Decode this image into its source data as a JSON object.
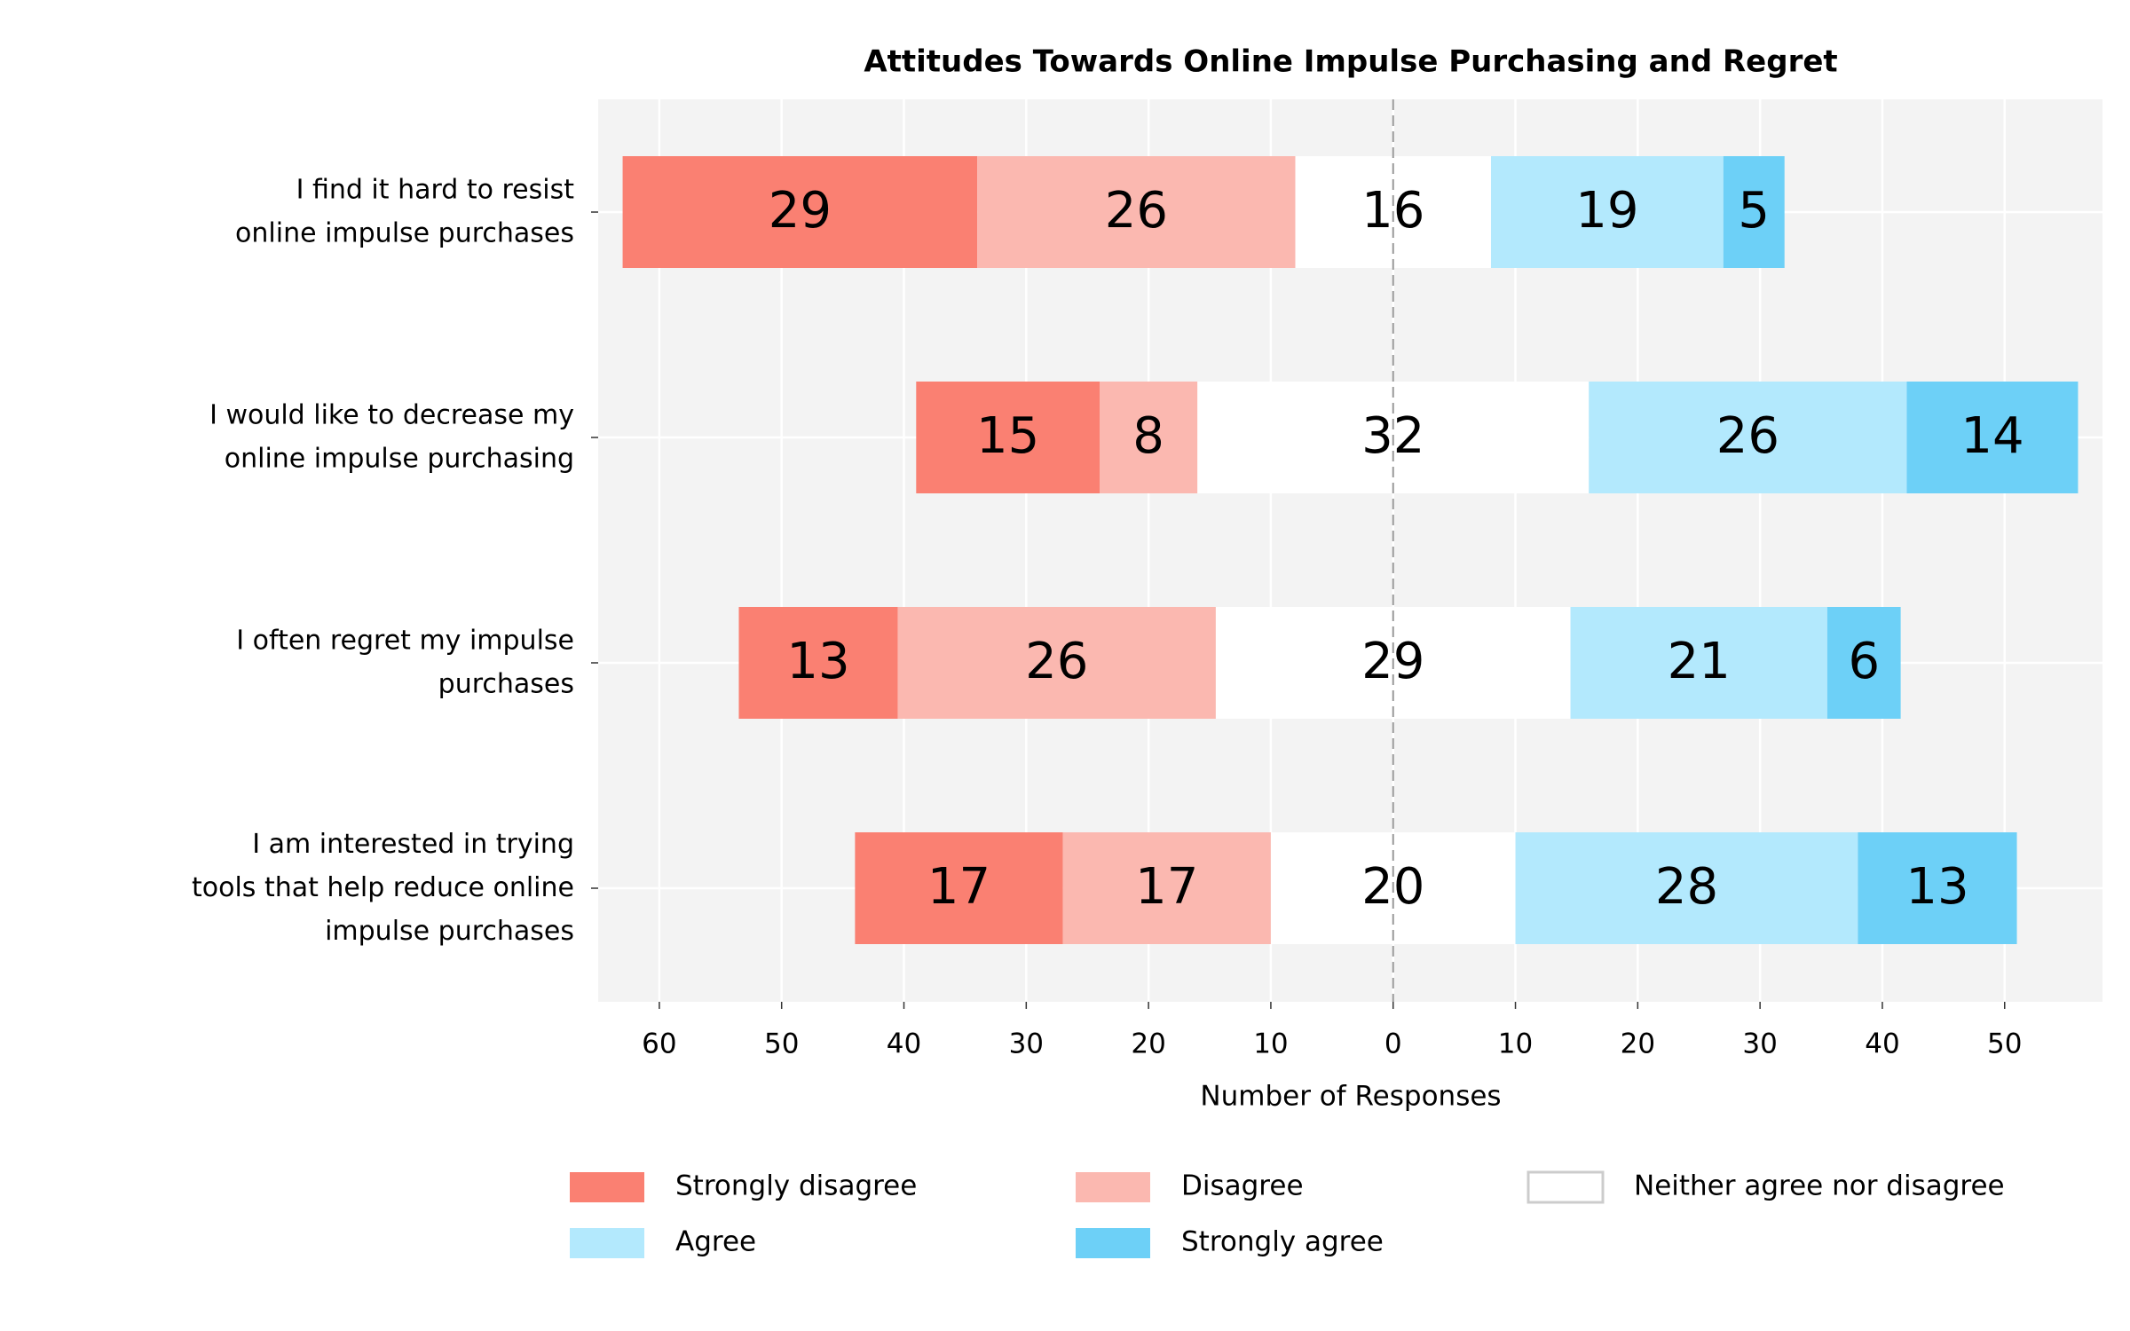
{
  "chart_data": {
    "type": "diverging_bar",
    "title": "Attitudes Towards Online Impulse Purchasing and Regret",
    "x_label": "Number of Responses",
    "categories": [
      "I find it hard to resist\nonline impulse purchases",
      "I would like to decrease my\nonline impulse purchasing",
      "I often regret my impulse\npurchases",
      "I am interested in trying\ntools that help reduce online\nimpulse purchases"
    ],
    "series": [
      {
        "name": "Strongly disagree",
        "color": "#fa8072",
        "side": "negative",
        "values": [
          29,
          15,
          13,
          17
        ]
      },
      {
        "name": "Disagree",
        "color": "#fbb8b0",
        "side": "negative",
        "values": [
          26,
          8,
          26,
          17
        ]
      },
      {
        "name": "Neither agree nor disagree",
        "color": "#ffffff",
        "side": "center",
        "values": [
          16,
          32,
          29,
          20
        ]
      },
      {
        "name": "Agree",
        "color": "#b3e9fd",
        "side": "positive",
        "values": [
          19,
          26,
          21,
          28
        ]
      },
      {
        "name": "Strongly agree",
        "color": "#6dd0f7",
        "side": "positive",
        "values": [
          5,
          14,
          6,
          13
        ]
      }
    ],
    "xlim": [
      -65,
      58
    ],
    "xticks": [
      {
        "value": -60,
        "label": "60"
      },
      {
        "value": -50,
        "label": "50"
      },
      {
        "value": -40,
        "label": "40"
      },
      {
        "value": -30,
        "label": "30"
      },
      {
        "value": -20,
        "label": "20"
      },
      {
        "value": -10,
        "label": "10"
      },
      0,
      10,
      20,
      30,
      40,
      50
    ],
    "grid": true,
    "legend": "bottom"
  }
}
